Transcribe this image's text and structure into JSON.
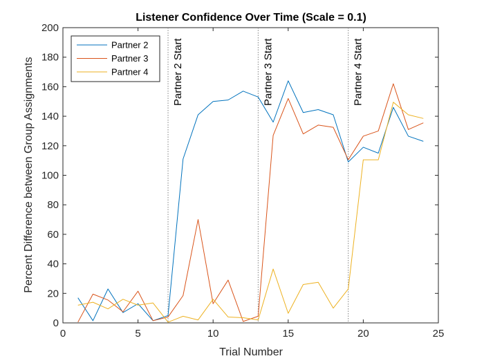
{
  "chart_data": {
    "type": "line",
    "title": "Listener Confidence Over Time (Scale = 0.1)",
    "xlabel": "Trial Number",
    "ylabel": "Percent Difference between Group Assignments",
    "xlim": [
      0,
      25
    ],
    "ylim": [
      0,
      200
    ],
    "xticks": [
      0,
      5,
      10,
      15,
      20,
      25
    ],
    "yticks": [
      0,
      20,
      40,
      60,
      80,
      100,
      120,
      140,
      160,
      180,
      200
    ],
    "grid": false,
    "legend_position": "top-left",
    "x": [
      1,
      2,
      3,
      4,
      5,
      6,
      7,
      8,
      9,
      10,
      11,
      12,
      13,
      14,
      15,
      16,
      17,
      18,
      19,
      20,
      21,
      22,
      23,
      24
    ],
    "series": [
      {
        "name": "Partner 2",
        "color": "#0072BD",
        "values": [
          17,
          1.5,
          23,
          7,
          13,
          1.5,
          5,
          111,
          141,
          150,
          151,
          157,
          153,
          136,
          164,
          142.5,
          144.5,
          141,
          109,
          119,
          115,
          146,
          126.5,
          123
        ]
      },
      {
        "name": "Partner 3",
        "color": "#D95319",
        "values": [
          0.5,
          19.5,
          15.5,
          7.5,
          21.5,
          1.5,
          4,
          18.5,
          70,
          13,
          29,
          1,
          4.5,
          127,
          152,
          128,
          134,
          132.5,
          110.5,
          126.5,
          130,
          162,
          131,
          135.5
        ]
      },
      {
        "name": "Partner 4",
        "color": "#EDB120",
        "values": [
          12,
          14,
          9.5,
          16,
          12,
          13.5,
          0.5,
          4.5,
          2,
          16,
          4,
          3.5,
          2,
          36.5,
          6.5,
          26,
          27.5,
          10,
          23,
          110.5,
          110.5,
          149.5,
          141,
          138.5
        ]
      }
    ],
    "annotations": [
      {
        "x": 7,
        "label": "Partner 2 Start"
      },
      {
        "x": 13,
        "label": "Partner 3 Start"
      },
      {
        "x": 19,
        "label": "Partner 4 Start"
      }
    ]
  }
}
